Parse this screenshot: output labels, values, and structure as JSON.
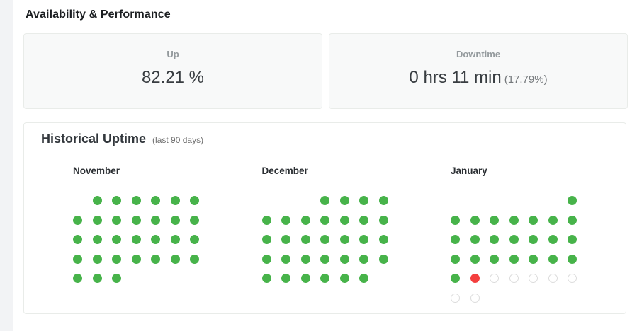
{
  "page": {
    "title": "Availability & Performance"
  },
  "stats": {
    "up": {
      "label": "Up",
      "value": "82.21 %"
    },
    "downtime": {
      "label": "Downtime",
      "value": "0 hrs 11 min",
      "percent": "(17.79%)"
    }
  },
  "history": {
    "title": "Historical Uptime",
    "subtitle": "(last 90 days)"
  },
  "colors": {
    "up_dot": "#47b34a",
    "down_dot": "#f43f3e",
    "pending_dot_border": "#dcdcdc",
    "card_bg": "#f8f9f9",
    "card_border": "#e9ece9"
  },
  "chart_data": {
    "type": "calendar-dot-grid",
    "title": "Historical Uptime",
    "subtitle": "(last 90 days)",
    "legend": {
      "up": "green filled dot",
      "down": "red filled dot",
      "pending": "gray outlined dot"
    },
    "summary": {
      "uptime_percent": 82.21,
      "downtime_percent": 17.79,
      "downtime_duration": "0 hrs 11 min"
    },
    "months": [
      {
        "label": "November",
        "up_days": 30,
        "down_days": 0,
        "pending_days": 0,
        "rows": [
          [
            "none",
            "up",
            "up",
            "up",
            "up",
            "up",
            "up"
          ],
          [
            "up",
            "up",
            "up",
            "up",
            "up",
            "up",
            "up"
          ],
          [
            "up",
            "up",
            "up",
            "up",
            "up",
            "up",
            "up"
          ],
          [
            "up",
            "up",
            "up",
            "up",
            "up",
            "up",
            "up"
          ],
          [
            "up",
            "up",
            "up",
            "none",
            "none",
            "none",
            "none"
          ]
        ]
      },
      {
        "label": "December",
        "up_days": 31,
        "down_days": 0,
        "pending_days": 0,
        "rows": [
          [
            "none",
            "none",
            "none",
            "up",
            "up",
            "up",
            "up"
          ],
          [
            "up",
            "up",
            "up",
            "up",
            "up",
            "up",
            "up"
          ],
          [
            "up",
            "up",
            "up",
            "up",
            "up",
            "up",
            "up"
          ],
          [
            "up",
            "up",
            "up",
            "up",
            "up",
            "up",
            "up"
          ],
          [
            "up",
            "up",
            "up",
            "up",
            "up",
            "up",
            "none"
          ]
        ]
      },
      {
        "label": "January",
        "up_days": 23,
        "down_days": 1,
        "pending_days": 7,
        "rows": [
          [
            "none",
            "none",
            "none",
            "none",
            "none",
            "none",
            "up"
          ],
          [
            "up",
            "up",
            "up",
            "up",
            "up",
            "up",
            "up"
          ],
          [
            "up",
            "up",
            "up",
            "up",
            "up",
            "up",
            "up"
          ],
          [
            "up",
            "up",
            "up",
            "up",
            "up",
            "up",
            "up"
          ],
          [
            "up",
            "down",
            "pending",
            "pending",
            "pending",
            "pending",
            "pending"
          ],
          [
            "pending",
            "pending",
            "none",
            "none",
            "none",
            "none",
            "none"
          ]
        ]
      }
    ]
  }
}
